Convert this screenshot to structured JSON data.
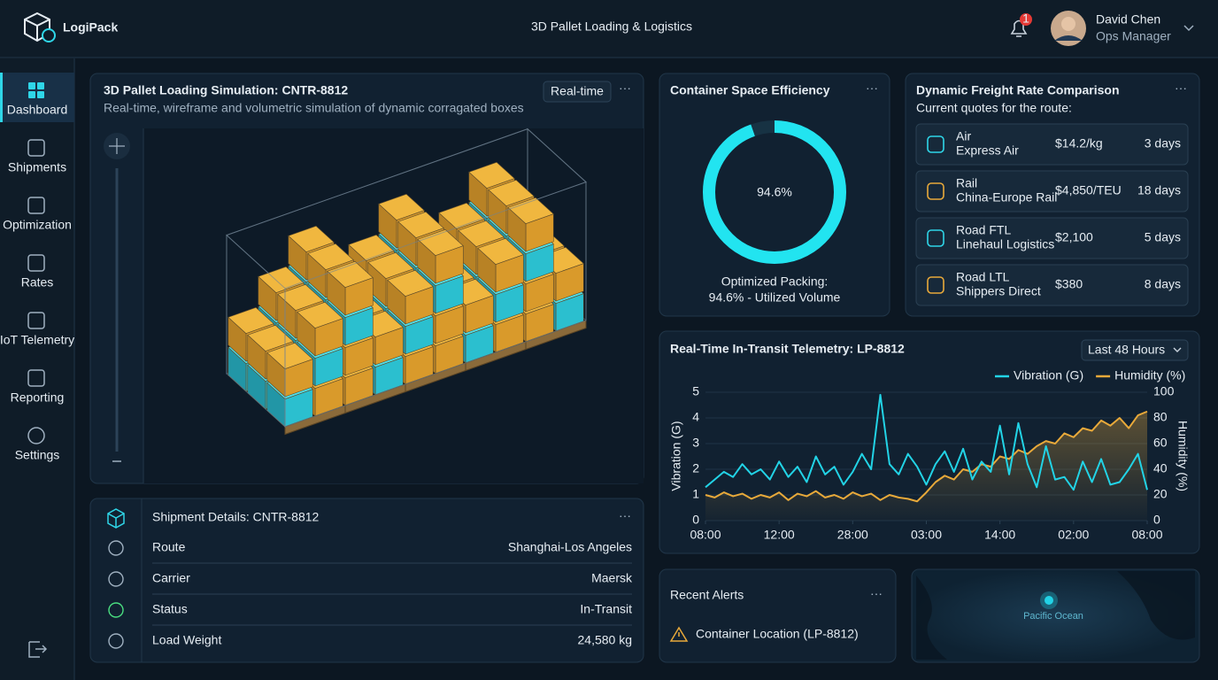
{
  "header": {
    "brand": "LogiPack",
    "title": "3D Pallet Loading & Logistics",
    "notifications": "1",
    "user": {
      "name": "David Chen",
      "role": "Ops Manager"
    }
  },
  "nav": [
    "Dashboard",
    "Shipments",
    "Optimization",
    "Rates",
    "IoT Telemetry",
    "Reporting",
    "Settings"
  ],
  "simulation": {
    "title": "3D Pallet Loading Simulation: CNTR-8812",
    "badge": "Real-time",
    "subtitle": "Real-time, wireframe and volumetric simulation of dynamic corragated boxes"
  },
  "efficiency": {
    "title": "Container Space Efficiency",
    "value": 94.6,
    "value_label": "94.6%",
    "caption": "Optimized Packing:",
    "caption2": "94.6% - Utilized Volume"
  },
  "freight": {
    "title": "Dynamic Freight Rate Comparison",
    "subtitle": "Current quotes for the route:",
    "rates": [
      {
        "mode": "Air",
        "service": "Express Air",
        "price": "$14.2/kg",
        "transit": "3 days"
      },
      {
        "mode": "Rail",
        "service": "China-Europe Rail",
        "price": "$4,850/TEU",
        "transit": "18 days"
      },
      {
        "mode": "Road FTL",
        "service": "Linehaul Logistics",
        "price": "$2,100",
        "transit": "5 days"
      },
      {
        "mode": "Road LTL",
        "service": "Shippers Direct",
        "price": "$380",
        "transit": "8 days"
      }
    ]
  },
  "chart_data": {
    "type": "line",
    "title": "Real-Time In-Transit Telemetry: LP-8812",
    "range": "Last 48 Hours",
    "ylabel": "Vibration (G)",
    "y2label": "Humidity (%)",
    "x": [
      0,
      1,
      2,
      3,
      4,
      5,
      6,
      7,
      8,
      9,
      10,
      11,
      12,
      13,
      14,
      15,
      16,
      17,
      18,
      19,
      20,
      21,
      22,
      23,
      24,
      25,
      26,
      27,
      28,
      29,
      30,
      31,
      32,
      33,
      34,
      35,
      36,
      37,
      38,
      39,
      40,
      41,
      42,
      43,
      44,
      45,
      46,
      47,
      48
    ],
    "xlim": [
      0,
      48
    ],
    "xticks": [
      {
        "value": 0,
        "label": "08:00"
      },
      {
        "value": 8,
        "label": "12:00"
      },
      {
        "value": 16,
        "label": "28:00"
      },
      {
        "value": 24,
        "label": "03:00"
      },
      {
        "value": 32,
        "label": "14:00"
      },
      {
        "value": 40,
        "label": "02:00"
      },
      {
        "value": 48,
        "label": "08:00"
      }
    ],
    "ylim": [
      0,
      5
    ],
    "yticks": [
      0,
      1,
      2,
      3,
      4,
      5
    ],
    "y2lim": [
      0,
      100
    ],
    "y2ticks": [
      0,
      20,
      40,
      60,
      80,
      100
    ],
    "grid": true,
    "legend": "top-right",
    "series": [
      {
        "name": "Vibration (G)",
        "color": "#22d3e6",
        "values": [
          1.3,
          1.6,
          1.9,
          1.7,
          2.2,
          1.8,
          2.0,
          1.6,
          2.3,
          1.7,
          2.1,
          1.5,
          2.5,
          1.8,
          2.1,
          1.4,
          1.9,
          2.6,
          2.0,
          4.9,
          2.2,
          1.8,
          2.6,
          2.1,
          1.4,
          2.2,
          2.7,
          1.9,
          2.8,
          1.6,
          2.3,
          1.9,
          3.7,
          1.8,
          3.8,
          2.2,
          1.3,
          2.9,
          1.6,
          1.7,
          1.2,
          2.3,
          1.5,
          2.4,
          1.4,
          1.5,
          2.0,
          2.6,
          1.2
        ]
      },
      {
        "name": "Humidity (%)",
        "color": "#e8a93a",
        "axis": "y2",
        "values": [
          20,
          18,
          22,
          19,
          21,
          17,
          20,
          18,
          22,
          16,
          21,
          19,
          23,
          18,
          20,
          17,
          22,
          19,
          21,
          16,
          20,
          18,
          17,
          15,
          22,
          30,
          35,
          32,
          40,
          38,
          44,
          42,
          50,
          48,
          55,
          52,
          58,
          62,
          60,
          68,
          65,
          72,
          70,
          78,
          74,
          80,
          72,
          82,
          85
        ]
      }
    ]
  },
  "shipment": {
    "title": "Shipment Details: CNTR-8812",
    "rows": [
      [
        "Route",
        "Shanghai-Los Angeles"
      ],
      [
        "Carrier",
        "Maersk"
      ],
      [
        "Status",
        "In-Transit"
      ],
      [
        "Load Weight",
        "24,580 kg"
      ]
    ]
  },
  "alerts": {
    "title": "Recent Alerts",
    "items": [
      "Container Location (LP-8812)"
    ]
  },
  "map": {
    "label": "Pacific Ocean"
  }
}
